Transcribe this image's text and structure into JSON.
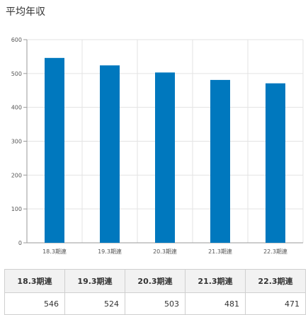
{
  "title": "平均年収",
  "colors": {
    "bar": "#0078be",
    "grid": "#e3e3e3",
    "axis": "#999999"
  },
  "chart_data": {
    "type": "bar",
    "title": "平均年収",
    "xlabel": "",
    "ylabel": "",
    "categories": [
      "18.3期連",
      "19.3期連",
      "20.3期連",
      "21.3期連",
      "22.3期連"
    ],
    "values": [
      546,
      524,
      503,
      481,
      471
    ],
    "ylim": [
      0,
      600
    ],
    "yticks": [
      0,
      100,
      200,
      300,
      400,
      500,
      600
    ],
    "grid": true,
    "legend": "none"
  },
  "table": {
    "headers": [
      "18.3期連",
      "19.3期連",
      "20.3期連",
      "21.3期連",
      "22.3期連"
    ],
    "values": [
      "546",
      "524",
      "503",
      "481",
      "471"
    ]
  }
}
